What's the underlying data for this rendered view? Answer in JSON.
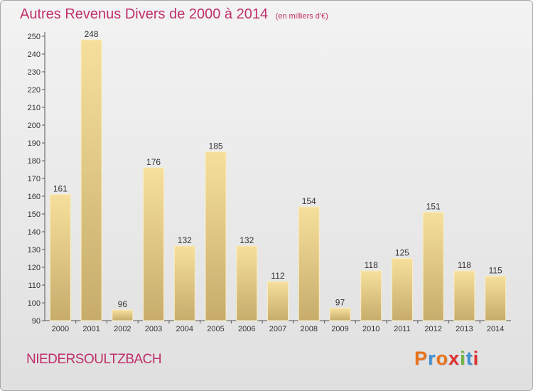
{
  "header": {
    "title": "Autres Revenus Divers de 2000 à 2014",
    "subtitle": "(en milliers d'€)"
  },
  "footer": {
    "place": "NIEDERSOULTZBACH",
    "logo": {
      "text": "Proxiti",
      "colors": [
        "#e8731c",
        "#3f8fd2",
        "#e8731c",
        "#e0302f",
        "#6db33f",
        "#3f8fd2",
        "#e0302f"
      ]
    }
  },
  "colors": {
    "title": "#c0306a",
    "bar_fill_top": "#f6df9c",
    "bar_fill_bottom": "#c7ac6c",
    "bar_stroke": "#fbeec2"
  },
  "chart_data": {
    "type": "bar",
    "categories": [
      "2000",
      "2001",
      "2002",
      "2003",
      "2004",
      "2005",
      "2006",
      "2007",
      "2008",
      "2009",
      "2010",
      "2011",
      "2012",
      "2013",
      "2014"
    ],
    "values": [
      161,
      248,
      96,
      176,
      132,
      185,
      132,
      112,
      154,
      97,
      118,
      125,
      151,
      118,
      115
    ],
    "title": "Autres Revenus Divers de 2000 à 2014",
    "subtitle": "(en milliers d'€)",
    "xlabel": "",
    "ylabel": "",
    "ylim": [
      90,
      250
    ],
    "yticks": [
      90,
      100,
      110,
      120,
      130,
      140,
      150,
      160,
      170,
      180,
      190,
      200,
      210,
      220,
      230,
      240,
      250
    ],
    "grid": false,
    "data_labels": true
  }
}
